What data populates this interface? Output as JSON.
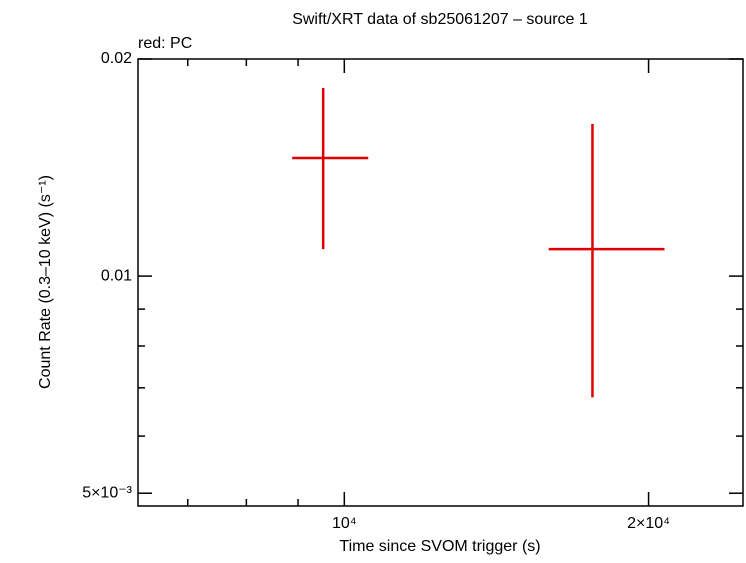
{
  "chart_data": {
    "type": "errorbar",
    "title": "Swift/XRT data of sb25061207 – source 1",
    "annotation": "red: PC",
    "xlabel": "Time since SVOM trigger (s)",
    "ylabel": "Count Rate (0.3–10 keV) (s⁻¹)",
    "xscale": "log",
    "yscale": "log",
    "xlim": [
      6250,
      24800
    ],
    "ylim": [
      0.0048,
      0.02
    ],
    "xticks": [
      {
        "value": 10000,
        "label": "10⁴"
      },
      {
        "value": 20000,
        "label": "2×10⁴"
      }
    ],
    "xminor": [
      7000,
      8000,
      9000
    ],
    "yticks": [
      {
        "value": 0.005,
        "label": "5×10⁻³"
      },
      0.01,
      0.02
    ],
    "yminor": [
      0.006,
      0.007,
      0.008,
      0.009
    ],
    "series": [
      {
        "name": "PC",
        "color": "#e00000",
        "x": [
          9530,
          17600
        ],
        "x_min": [
          8880,
          15930
        ],
        "x_max": [
          10560,
          20740
        ],
        "values": [
          0.01458,
          0.0109
        ],
        "y_min": [
          0.0109,
          0.00679
        ],
        "y_max": [
          0.01823,
          0.01625
        ]
      }
    ]
  }
}
